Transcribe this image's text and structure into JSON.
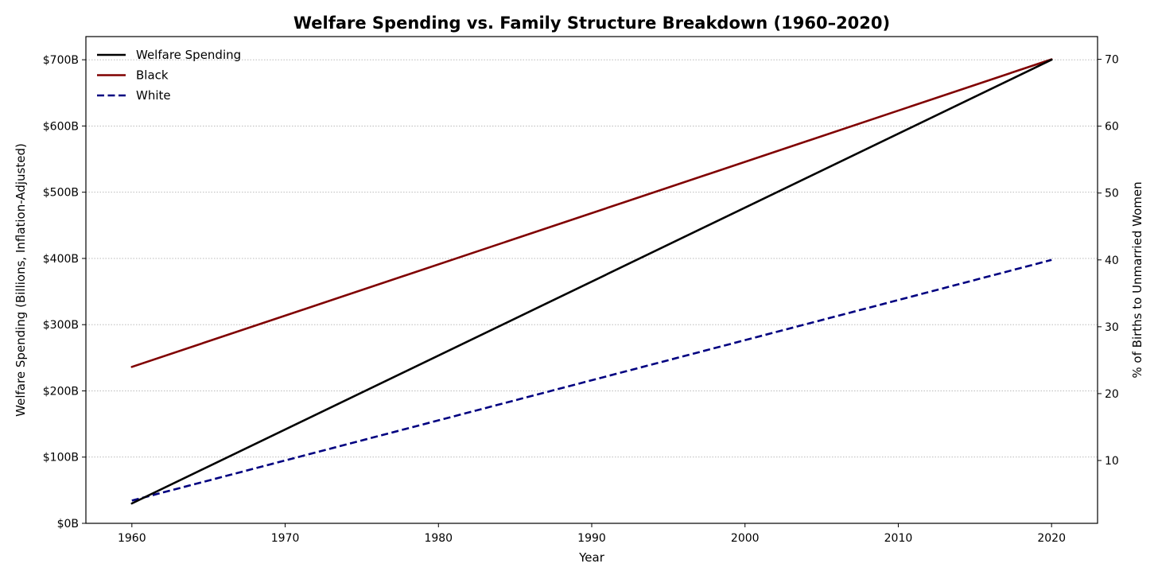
{
  "chart_data": {
    "type": "line",
    "title": "Welfare Spending vs. Family Structure Breakdown (1960–2020)",
    "xlabel": "Year",
    "ylabel_left": "Welfare Spending (Billions, Inflation-Adjusted)",
    "ylabel_right": "% of Births to Unmarried Women",
    "x": [
      1960,
      2020
    ],
    "xlim": [
      1957,
      2023
    ],
    "xticks": [
      1960,
      1970,
      1980,
      1990,
      2000,
      2010,
      2020
    ],
    "ylim_left": [
      0,
      735
    ],
    "yticks_left": [
      0,
      100,
      200,
      300,
      400,
      500,
      600,
      700
    ],
    "ytick_labels_left": [
      "$0B",
      "$100B",
      "$200B",
      "$300B",
      "$400B",
      "$500B",
      "$600B",
      "$700B"
    ],
    "ylim_right": [
      0.6,
      73.4
    ],
    "yticks_right": [
      10,
      20,
      30,
      40,
      50,
      60,
      70
    ],
    "ytick_labels_right": [
      "10",
      "20",
      "30",
      "40",
      "50",
      "60",
      "70"
    ],
    "grid": "horizontal dotted",
    "legend_position": "top-left",
    "series": [
      {
        "name": "Welfare Spending",
        "axis": "left",
        "values": [
          30,
          700
        ],
        "color": "#000000",
        "style": "solid"
      },
      {
        "name": "Black",
        "axis": "right",
        "values": [
          24,
          70
        ],
        "color": "#800000",
        "style": "solid"
      },
      {
        "name": "White",
        "axis": "right",
        "values": [
          4,
          40
        ],
        "color": "#000080",
        "style": "dashed"
      }
    ]
  }
}
